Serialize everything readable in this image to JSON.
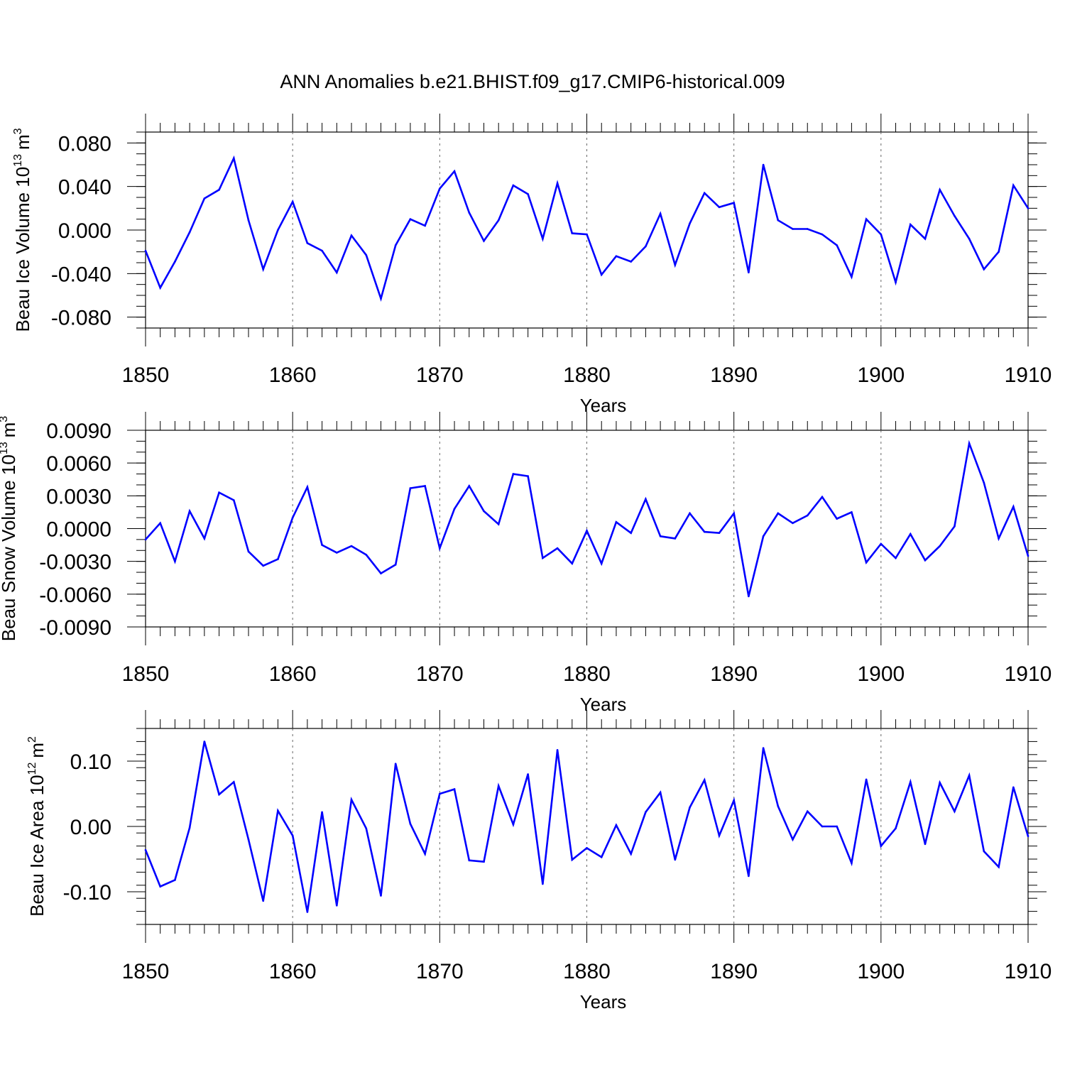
{
  "title": "ANN Anomalies b.e21.BHIST.f09_g17.CMIP6-historical.009",
  "line_color": "#0000ff",
  "chart_data": [
    {
      "type": "line",
      "id": "ice-volume",
      "ylabel": {
        "text": "Beau Ice Volume 10",
        "exponent": "13",
        "unit": "m",
        "unit_exponent": "3"
      },
      "xlabel": "Years",
      "xlim": [
        1850,
        1910
      ],
      "ylim": [
        -0.09,
        0.09
      ],
      "xticks": [
        "1850",
        "1860",
        "1870",
        "1880",
        "1890",
        "1900",
        "1910"
      ],
      "yticks": [
        {
          "value": 0.08,
          "label": "0.080"
        },
        {
          "value": 0.04,
          "label": "0.040"
        },
        {
          "value": 0.0,
          "label": "0.000"
        },
        {
          "value": -0.04,
          "label": "-0.040"
        },
        {
          "value": -0.08,
          "label": "-0.080"
        }
      ],
      "yminor_step": 0.01,
      "series": [
        {
          "name": "Beau Ice Volume",
          "start_year": 1850,
          "values": [
            -0.019,
            -0.053,
            -0.029,
            -0.002,
            0.029,
            0.037,
            0.066,
            0.009,
            -0.036,
            0.0,
            0.026,
            -0.012,
            -0.019,
            -0.039,
            -0.005,
            -0.023,
            -0.063,
            -0.014,
            0.01,
            0.004,
            0.038,
            0.054,
            0.016,
            -0.01,
            0.009,
            0.041,
            0.033,
            -0.008,
            0.043,
            -0.003,
            -0.004,
            -0.041,
            -0.024,
            -0.029,
            -0.015,
            0.015,
            -0.032,
            0.006,
            0.034,
            0.021,
            0.025,
            -0.039,
            0.06,
            0.009,
            0.001,
            0.001,
            -0.004,
            -0.014,
            -0.043,
            0.01,
            -0.004,
            -0.048,
            0.005,
            -0.008,
            0.037,
            0.013,
            -0.008,
            -0.036,
            -0.02,
            0.041,
            0.02
          ]
        }
      ]
    },
    {
      "type": "line",
      "id": "snow-volume",
      "ylabel": {
        "text": "Beau Snow Volume 10",
        "exponent": "13",
        "unit": "m",
        "unit_exponent": "3"
      },
      "xlabel": "Years",
      "xlim": [
        1850,
        1910
      ],
      "ylim": [
        -0.009,
        0.009
      ],
      "xticks": [
        "1850",
        "1860",
        "1870",
        "1880",
        "1890",
        "1900",
        "1910"
      ],
      "yticks": [
        {
          "value": 0.009,
          "label": "0.0090"
        },
        {
          "value": 0.006,
          "label": "0.0060"
        },
        {
          "value": 0.003,
          "label": "0.0030"
        },
        {
          "value": 0.0,
          "label": "0.0000"
        },
        {
          "value": -0.003,
          "label": "-0.0030"
        },
        {
          "value": -0.006,
          "label": "-0.0060"
        },
        {
          "value": -0.009,
          "label": "-0.0090"
        }
      ],
      "yminor_step": 0.001,
      "series": [
        {
          "name": "Beau Snow Volume",
          "start_year": 1850,
          "values": [
            -0.001,
            0.0005,
            -0.003,
            0.0016,
            -0.0009,
            0.0033,
            0.0026,
            -0.0021,
            -0.0034,
            -0.0028,
            0.001,
            0.0038,
            -0.0015,
            -0.0022,
            -0.0016,
            -0.0024,
            -0.0041,
            -0.0033,
            0.0037,
            0.0039,
            -0.0018,
            0.0018,
            0.0039,
            0.0016,
            0.0004,
            0.005,
            0.0048,
            -0.0027,
            -0.0018,
            -0.0032,
            -0.0002,
            -0.0032,
            0.0006,
            -0.0004,
            0.0027,
            -0.0007,
            -0.0009,
            0.0014,
            -0.0003,
            -0.0004,
            0.0014,
            -0.0062,
            -0.0007,
            0.0014,
            0.0005,
            0.0012,
            0.0029,
            0.0009,
            0.0015,
            -0.0031,
            -0.0014,
            -0.0027,
            -0.0005,
            -0.0029,
            -0.0016,
            0.0002,
            0.0078,
            0.0042,
            -0.0009,
            0.002,
            -0.0025
          ]
        }
      ]
    },
    {
      "type": "line",
      "id": "ice-area",
      "ylabel": {
        "text": "Beau Ice Area 10",
        "exponent": "12",
        "unit": "m",
        "unit_exponent": "2"
      },
      "xlabel": "Years",
      "xlim": [
        1850,
        1910
      ],
      "ylim": [
        -0.15,
        0.15
      ],
      "xticks": [
        "1850",
        "1860",
        "1870",
        "1880",
        "1890",
        "1900",
        "1910"
      ],
      "yticks": [
        {
          "value": 0.1,
          "label": "0.10"
        },
        {
          "value": 0.0,
          "label": "0.00"
        },
        {
          "value": -0.1,
          "label": "-0.10"
        }
      ],
      "yminor_step": 0.02,
      "series": [
        {
          "name": "Beau Ice Area",
          "start_year": 1850,
          "values": [
            -0.036,
            -0.092,
            -0.082,
            -0.002,
            0.13,
            0.049,
            0.068,
            -0.02,
            -0.114,
            0.024,
            -0.014,
            -0.131,
            0.022,
            -0.121,
            0.041,
            -0.003,
            -0.106,
            0.096,
            0.004,
            -0.042,
            0.05,
            0.057,
            -0.052,
            -0.054,
            0.062,
            0.003,
            0.08,
            -0.088,
            0.117,
            -0.051,
            -0.033,
            -0.047,
            0.002,
            -0.042,
            0.022,
            0.052,
            -0.051,
            0.029,
            0.071,
            -0.014,
            0.04,
            -0.076,
            0.12,
            0.031,
            -0.02,
            0.023,
            0.0,
            0.0,
            -0.056,
            0.072,
            -0.03,
            -0.003,
            0.068,
            -0.027,
            0.067,
            0.023,
            0.078,
            -0.038,
            -0.062,
            0.06,
            -0.015
          ]
        }
      ]
    }
  ]
}
